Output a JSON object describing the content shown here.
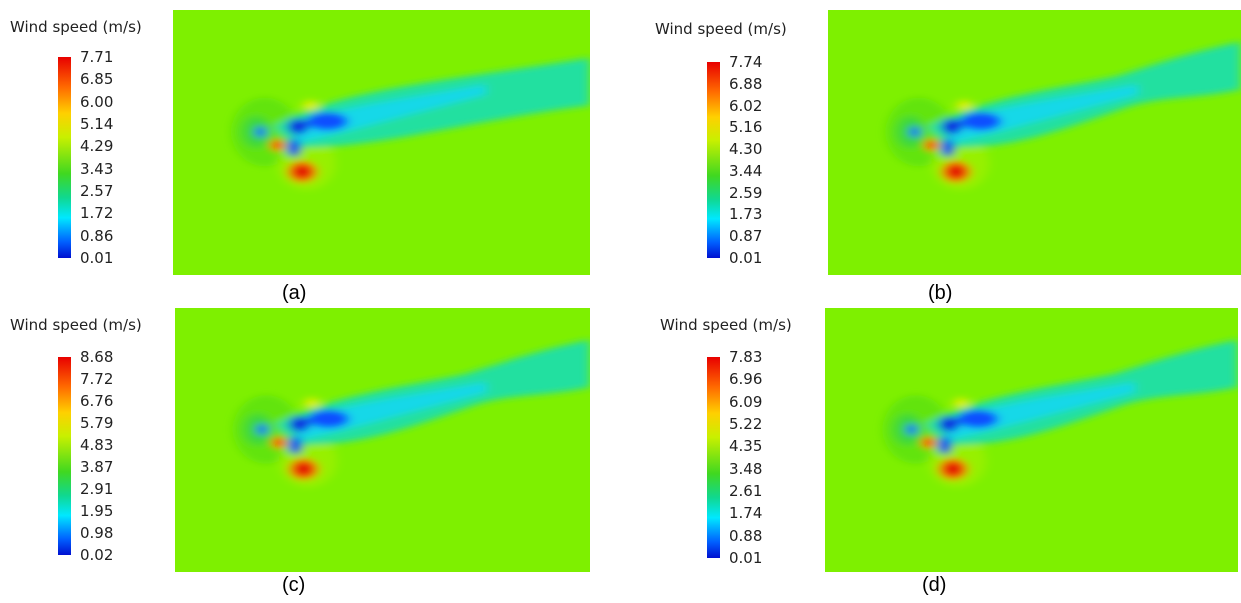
{
  "panels": [
    {
      "caption": "(a)",
      "colorbar": {
        "title": "Wind speed (m/s)",
        "ticks": [
          "7.71",
          "6.85",
          "6.00",
          "5.14",
          "4.29",
          "3.43",
          "2.57",
          "1.72",
          "0.86",
          "0.01"
        ]
      }
    },
    {
      "caption": "(b)",
      "colorbar": {
        "title": "Wind speed (m/s)",
        "ticks": [
          "7.74",
          "6.88",
          "6.02",
          "5.16",
          "4.30",
          "3.44",
          "2.59",
          "1.73",
          "0.87",
          "0.01"
        ]
      }
    },
    {
      "caption": "(c)",
      "colorbar": {
        "title": "Wind speed (m/s)",
        "ticks": [
          "8.68",
          "7.72",
          "6.76",
          "5.79",
          "4.83",
          "3.87",
          "2.91",
          "1.95",
          "0.98",
          "0.02"
        ]
      }
    },
    {
      "caption": "(d)",
      "colorbar": {
        "title": "Wind speed (m/s)",
        "ticks": [
          "7.83",
          "6.96",
          "6.09",
          "5.22",
          "4.35",
          "3.48",
          "2.61",
          "1.74",
          "0.88",
          "0.01"
        ]
      }
    }
  ]
}
